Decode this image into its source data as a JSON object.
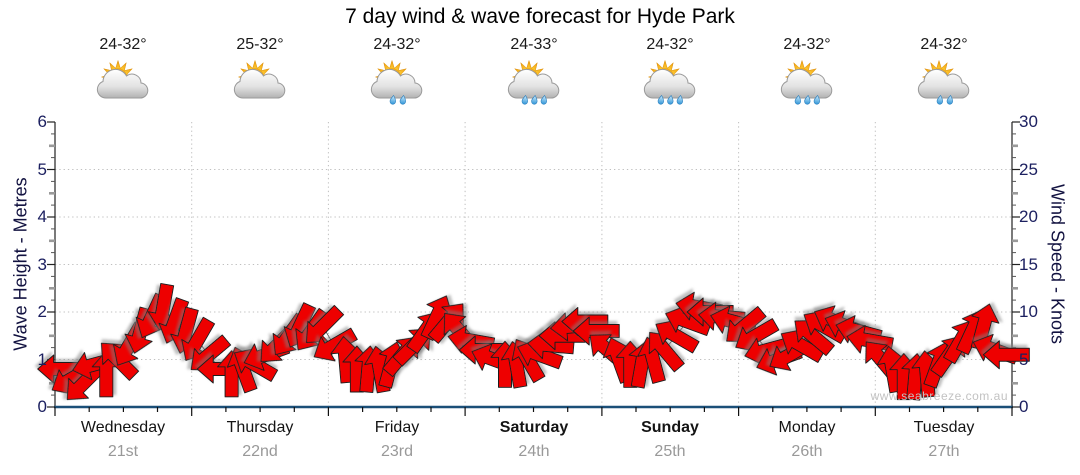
{
  "title": "7 day wind & wave forecast for Hyde Park",
  "watermark": "www.seabreeze.com.au",
  "colors": {
    "arrow_fill": "#ee0202",
    "arrow_outline": "#1e1e1e",
    "grid": "#bfbfbf",
    "side_axis": "#333333",
    "bottom_axis": "#1b4f78",
    "axis_number": "#1c2060",
    "day_label": "#141414",
    "date_label": "#999999",
    "watermark": "#c2c2c2"
  },
  "days": [
    {
      "name": "Wednesday",
      "date": "21st",
      "temp": "24-32°",
      "icon": "partly-cloudy",
      "weekend": false
    },
    {
      "name": "Thursday",
      "date": "22nd",
      "temp": "25-32°",
      "icon": "partly-cloudy",
      "weekend": false
    },
    {
      "name": "Friday",
      "date": "23rd",
      "temp": "24-32°",
      "icon": "showers-2",
      "weekend": false
    },
    {
      "name": "Saturday",
      "date": "24th",
      "temp": "24-33°",
      "icon": "showers-3",
      "weekend": true
    },
    {
      "name": "Sunday",
      "date": "25th",
      "temp": "24-32°",
      "icon": "showers-3",
      "weekend": true
    },
    {
      "name": "Monday",
      "date": "26th",
      "temp": "24-32°",
      "icon": "showers-3",
      "weekend": false
    },
    {
      "name": "Tuesday",
      "date": "27th",
      "temp": "24-32°",
      "icon": "showers-2",
      "weekend": false
    }
  ],
  "chart_data": {
    "type": "wind-arrow-timeseries",
    "title": "7 day wind & wave forecast for Hyde Park",
    "grid": "dotted",
    "left_axis": {
      "title": "Wave Height - Metres",
      "min": 0,
      "max": 6,
      "ticks": [
        0,
        1,
        2,
        3,
        4,
        5,
        6
      ]
    },
    "right_axis": {
      "title": "Wind Speed - Knots",
      "min": 0,
      "max": 30,
      "ticks": [
        0,
        5,
        10,
        15,
        20,
        25,
        30
      ]
    },
    "x_categories": [
      "Wednesday 21st",
      "Thursday 22nd",
      "Friday 23rd",
      "Saturday 24th",
      "Sunday 25th",
      "Monday 26th",
      "Tuesday 27th"
    ],
    "samples_per_day": 12,
    "wind": {
      "unit": "knots",
      "speeds_knots": [
        4,
        3,
        2.5,
        4.5,
        3.5,
        5,
        6.5,
        8,
        9.5,
        10.5,
        9,
        8,
        7,
        5.5,
        4,
        3.5,
        4,
        4.5,
        5.5,
        6.5,
        7.5,
        8.5,
        8,
        8.5,
        6.5,
        5,
        4,
        4,
        4,
        4.5,
        5.5,
        6.5,
        8,
        9.5,
        9,
        8,
        7,
        6,
        5,
        4.5,
        4.5,
        5,
        5.5,
        6.5,
        7.5,
        8.5,
        9,
        8,
        6,
        5,
        4.5,
        4.5,
        5,
        6,
        7.5,
        9,
        10.5,
        10,
        9.5,
        9,
        8.5,
        7.5,
        6,
        5,
        5.5,
        6.5,
        7.5,
        8.5,
        9,
        8.5,
        8,
        7,
        5,
        4,
        3.2,
        3.2,
        3.5,
        4.5,
        5.5,
        7,
        8,
        8.5,
        6,
        5.5
      ],
      "arrow_point_dirs_deg": [
        270,
        240,
        225,
        255,
        0,
        315,
        210,
        195,
        205,
        190,
        200,
        195,
        210,
        230,
        270,
        0,
        340,
        300,
        250,
        225,
        215,
        205,
        215,
        225,
        240,
        355,
        0,
        5,
        350,
        15,
        40,
        45,
        35,
        25,
        40,
        320,
        280,
        270,
        290,
        0,
        350,
        330,
        290,
        275,
        270,
        265,
        270,
        270,
        310,
        340,
        0,
        10,
        345,
        320,
        300,
        290,
        280,
        270,
        275,
        285,
        230,
        240,
        255,
        250,
        240,
        300,
        310,
        300,
        295,
        290,
        285,
        280,
        320,
        350,
        0,
        5,
        355,
        20,
        35,
        30,
        25,
        15,
        290,
        270
      ],
      "dir_convention": "degrees clockwise from up(N) that arrow points toward"
    }
  }
}
